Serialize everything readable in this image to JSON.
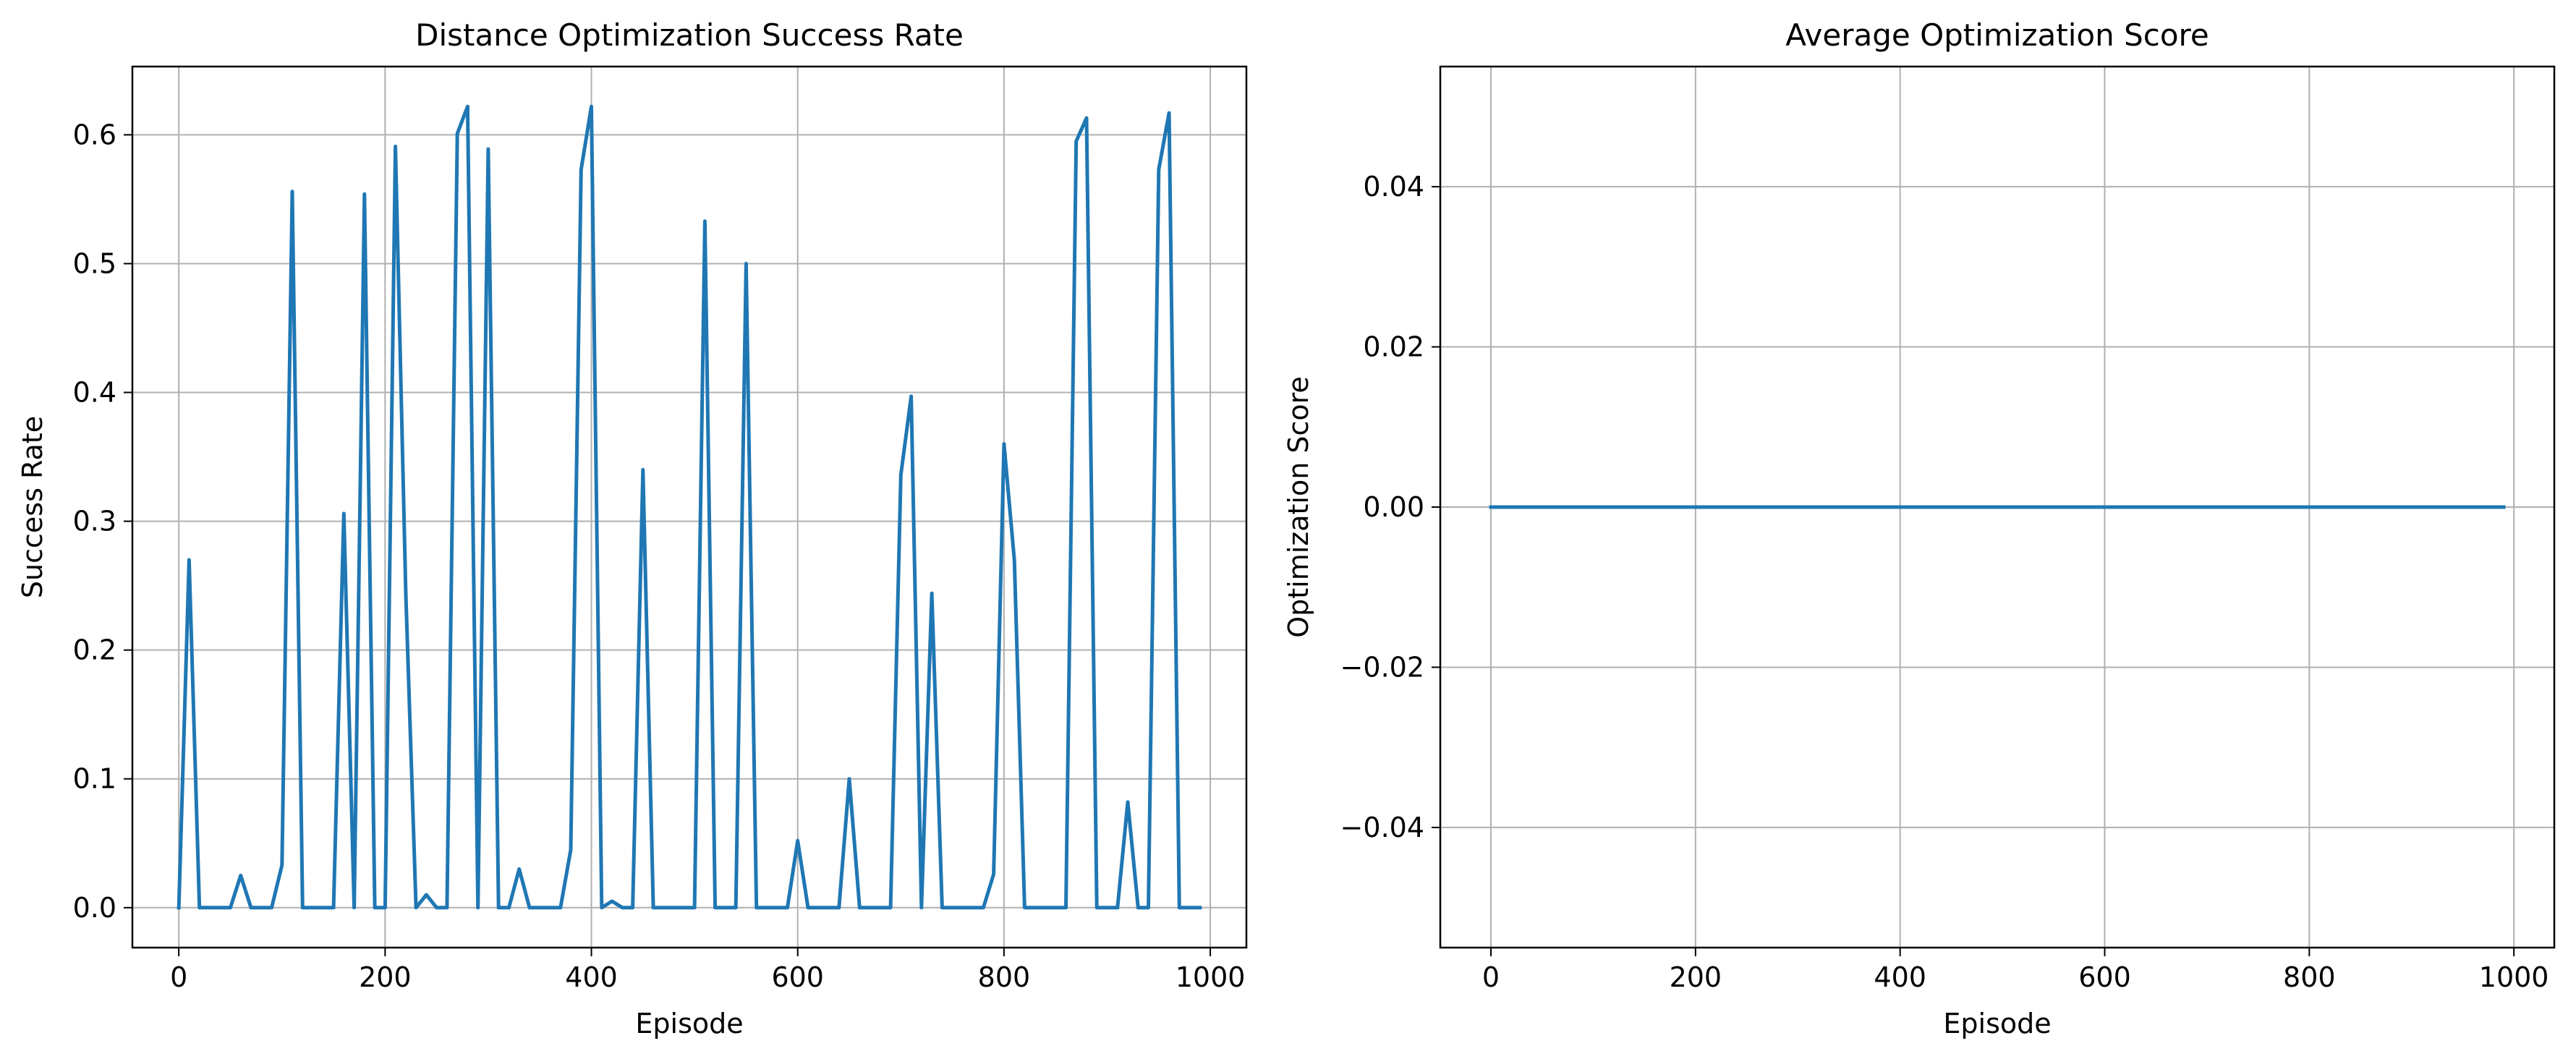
{
  "chart_data": [
    {
      "type": "line",
      "title": "Distance Optimization Success Rate",
      "xlabel": "Episode",
      "ylabel": "Success Rate",
      "xlim": [
        -45,
        1035
      ],
      "ylim": [
        -0.031,
        0.653
      ],
      "xticks": [
        0,
        200,
        400,
        600,
        800,
        1000
      ],
      "xtick_labels": [
        "0",
        "200",
        "400",
        "600",
        "800",
        "1000"
      ],
      "yticks": [
        0.0,
        0.1,
        0.2,
        0.3,
        0.4,
        0.5,
        0.6
      ],
      "ytick_labels": [
        "0.0",
        "0.1",
        "0.2",
        "0.3",
        "0.4",
        "0.5",
        "0.6"
      ],
      "grid": true,
      "line_color": "#1f77b4",
      "series": [
        {
          "x": [
            0,
            10,
            20,
            30,
            40,
            50,
            60,
            70,
            80,
            90,
            100,
            110,
            120,
            130,
            140,
            150,
            160,
            170,
            180,
            190,
            200,
            210,
            220,
            230,
            240,
            250,
            260,
            270,
            280,
            290,
            300,
            310,
            320,
            330,
            340,
            350,
            360,
            370,
            380,
            390,
            400,
            410,
            420,
            430,
            440,
            450,
            460,
            470,
            480,
            490,
            500,
            510,
            520,
            530,
            540,
            550,
            560,
            570,
            580,
            590,
            600,
            610,
            620,
            630,
            640,
            650,
            660,
            670,
            680,
            690,
            700,
            710,
            720,
            730,
            740,
            750,
            760,
            770,
            780,
            790,
            800,
            810,
            820,
            830,
            840,
            850,
            860,
            870,
            880,
            890,
            900,
            910,
            920,
            930,
            940,
            950,
            960,
            970,
            980,
            990
          ],
          "y": [
            0.0,
            0.27,
            0.0,
            0.0,
            0.0,
            0.0,
            0.025,
            0.0,
            0.0,
            0.0,
            0.033,
            0.556,
            0.0,
            0.0,
            0.0,
            0.0,
            0.306,
            0.0,
            0.554,
            0.0,
            0.0,
            0.591,
            0.245,
            0.0,
            0.01,
            0.0,
            0.0,
            0.601,
            0.622,
            0.0,
            0.589,
            0.0,
            0.0,
            0.03,
            0.0,
            0.0,
            0.0,
            0.0,
            0.045,
            0.573,
            0.622,
            0.0,
            0.005,
            0.0,
            0.0,
            0.34,
            0.0,
            0.0,
            0.0,
            0.0,
            0.0,
            0.533,
            0.0,
            0.0,
            0.0,
            0.5,
            0.0,
            0.0,
            0.0,
            0.0,
            0.052,
            0.0,
            0.0,
            0.0,
            0.0,
            0.1,
            0.0,
            0.0,
            0.0,
            0.0,
            0.336,
            0.397,
            0.0,
            0.244,
            0.0,
            0.0,
            0.0,
            0.0,
            0.0,
            0.026,
            0.36,
            0.27,
            0.0,
            0.0,
            0.0,
            0.0,
            0.0,
            0.595,
            0.613,
            0.0,
            0.0,
            0.0,
            0.082,
            0.0,
            0.0,
            0.573,
            0.617,
            0.0,
            0.0,
            0.0
          ]
        }
      ]
    },
    {
      "type": "line",
      "title": "Average Optimization Score",
      "xlabel": "Episode",
      "ylabel": "Optimization Score",
      "xlim": [
        -49.5,
        1039.5
      ],
      "ylim": [
        -0.055,
        0.055
      ],
      "xticks": [
        0,
        200,
        400,
        600,
        800,
        1000
      ],
      "xtick_labels": [
        "0",
        "200",
        "400",
        "600",
        "800",
        "1000"
      ],
      "yticks": [
        -0.04,
        -0.02,
        0.0,
        0.02,
        0.04
      ],
      "ytick_labels": [
        "−0.04",
        "−0.02",
        "0.00",
        "0.02",
        "0.04"
      ],
      "grid": true,
      "line_color": "#1f77b4",
      "series": [
        {
          "x": [
            0,
            990
          ],
          "y": [
            0.0,
            0.0
          ]
        }
      ]
    }
  ]
}
